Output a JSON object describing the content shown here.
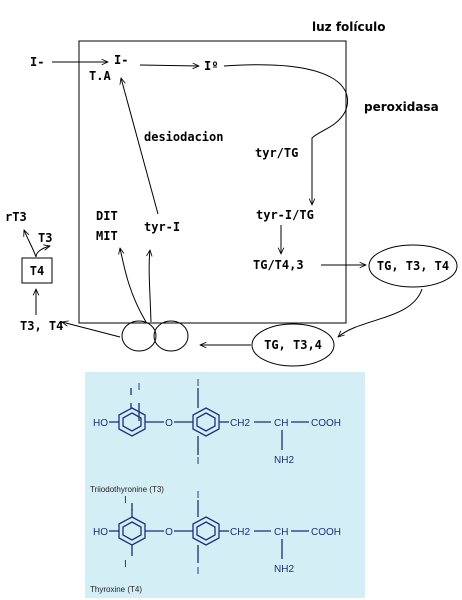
{
  "diagram": {
    "lumen_label": "luz folículo",
    "iodide_outside": "I-",
    "iodide_cell": "I-",
    "ta_label": "T.A",
    "iodine": "Iº",
    "peroxidase": "peroxidasa",
    "deiodination": "desiodacion",
    "tyr_tg": "tyr/TG",
    "tyr_i_tg": "tyr-I/TG",
    "tg_t4_t3": "TG/T4,3",
    "tg_t3_t4": "TG, T3, T4",
    "tg_t3_4": "TG, T3,4",
    "dit": "DIT",
    "mit": "MIT",
    "tyr_i": "tyr-I",
    "t3_t4_out": "T3, T4",
    "t4_box": "T4",
    "t3": "T3",
    "rt3": "rT3"
  },
  "structures": {
    "panel_color": "#d4eef5",
    "ink_color": "#1b2f7a",
    "t3": {
      "iodine": "I",
      "ho": "HO",
      "o": "O",
      "ch2": "CH2",
      "ch": "CH",
      "cooh": "COOH",
      "nh2": "NH2",
      "caption": "Triiodothyronine (T3)"
    },
    "t4": {
      "iodine": "I",
      "ho": "HO",
      "o": "O",
      "ch2": "CH2",
      "ch": "CH",
      "cooh": "COOH",
      "nh2": "NH2",
      "caption": "Thyroxine (T4)"
    }
  }
}
